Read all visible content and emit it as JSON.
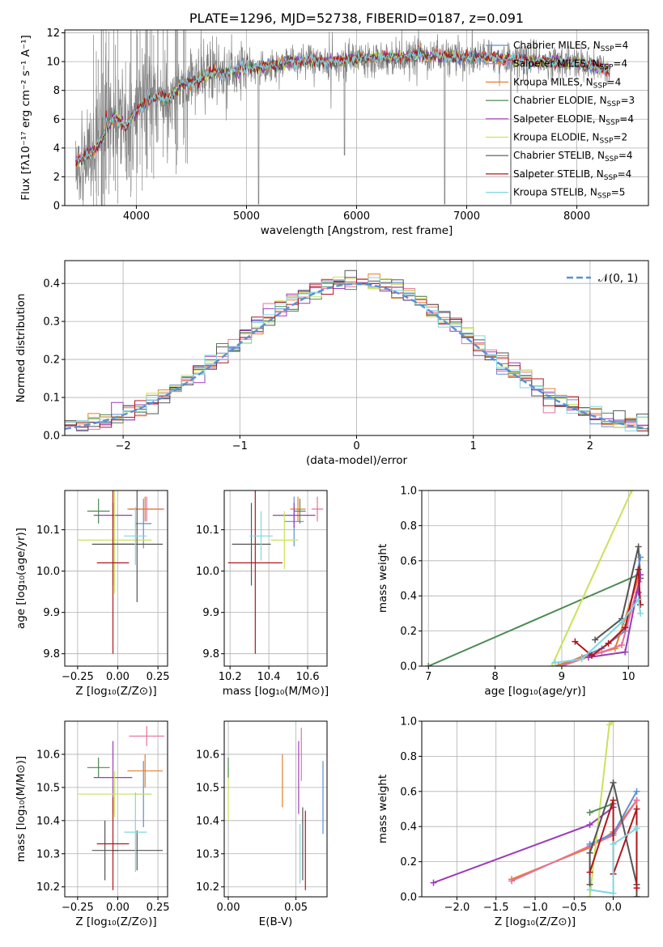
{
  "colors": {
    "chabrier_miles": "#5b8fd6",
    "salpeter_miles": "#e6709c",
    "kroupa_miles": "#e87d2c",
    "chabrier_elodie": "#4c8a52",
    "salpeter_elodie": "#9b3bb8",
    "kroupa_elodie": "#c9e25a",
    "chabrier_stelib": "#555555",
    "salpeter_stelib": "#b0161c",
    "kroupa_stelib": "#7fd6e0",
    "data": "#808080",
    "normal": "#5b8fd6"
  },
  "chart_data": [
    {
      "id": "spectrum",
      "type": "line",
      "title": "PLATE=1296, MJD=52738, FIBERID=0187, z=0.091",
      "xlabel": "wavelength [Angstrom, rest frame]",
      "ylabel": "Flux [fλ10⁻¹⁷ erg cm⁻² s⁻¹ A⁻¹]",
      "xlim": [
        3350,
        8650
      ],
      "ylim": [
        0,
        12.2
      ],
      "xticks": [
        "4000",
        "5000",
        "6000",
        "7000",
        "8000"
      ],
      "yticks": [
        "0",
        "2",
        "4",
        "6",
        "8",
        "10",
        "12"
      ],
      "legend_position": "right",
      "legend": [
        {
          "name": "Chabrier MILES, N",
          "sub": "SSP",
          "suffix": "=4",
          "color": "#5b8fd6"
        },
        {
          "name": "Salpeter MILES, N",
          "sub": "SSP",
          "suffix": "=4",
          "color": "#e6709c"
        },
        {
          "name": "Kroupa MILES, N",
          "sub": "SSP",
          "suffix": "=4",
          "color": "#e87d2c"
        },
        {
          "name": "Chabrier ELODIE, N",
          "sub": "SSP",
          "suffix": "=3",
          "color": "#4c8a52"
        },
        {
          "name": "Salpeter ELODIE, N",
          "sub": "SSP",
          "suffix": "=4",
          "color": "#9b3bb8"
        },
        {
          "name": "Kroupa ELODIE, N",
          "sub": "SSP",
          "suffix": "=2",
          "color": "#c9e25a"
        },
        {
          "name": "Chabrier STELIB, N",
          "sub": "SSP",
          "suffix": "=4",
          "color": "#555555"
        },
        {
          "name": "Salpeter STELIB, N",
          "sub": "SSP",
          "suffix": "=4",
          "color": "#b0161c"
        },
        {
          "name": "Kroupa STELIB, N",
          "sub": "SSP",
          "suffix": "=5",
          "color": "#7fd6e0"
        }
      ],
      "continuum": {
        "x": [
          3450,
          3600,
          3700,
          3800,
          3900,
          4000,
          4100,
          4200,
          4300,
          4400,
          4500,
          4600,
          4700,
          4800,
          4900,
          5000,
          5200,
          5400,
          5600,
          5800,
          6000,
          6200,
          6400,
          6600,
          6800,
          7000,
          7200,
          7400,
          7600,
          7800,
          8000,
          8200,
          8300
        ],
        "y": [
          3.0,
          3.7,
          4.8,
          6.2,
          5.5,
          6.5,
          7.3,
          7.6,
          7.4,
          8.4,
          8.6,
          8.9,
          9.3,
          9.2,
          9.3,
          9.5,
          9.7,
          10.0,
          10.1,
          10.0,
          10.2,
          10.3,
          10.3,
          10.4,
          10.3,
          10.3,
          10.3,
          10.2,
          10.0,
          10.0,
          9.9,
          9.6,
          9.4
        ]
      },
      "emission_lines": [
        {
          "x": 3727,
          "y": 7.5
        },
        {
          "x": 4102,
          "y": 8.7
        },
        {
          "x": 4861,
          "y": 10.8
        },
        {
          "x": 4959,
          "y": 10.7
        },
        {
          "x": 5007,
          "y": 11.2
        },
        {
          "x": 6563,
          "y": 11.5
        },
        {
          "x": 6584,
          "y": 11.2
        },
        {
          "x": 6717,
          "y": 11.0
        },
        {
          "x": 6731,
          "y": 10.9
        }
      ],
      "absorption_dips": [
        {
          "x": 3933,
          "y": 2.0
        },
        {
          "x": 3968,
          "y": 2.5
        },
        {
          "x": 5110,
          "y": 0.1
        },
        {
          "x": 5890,
          "y": 3.5
        },
        {
          "x": 6800,
          "y": 0.1
        },
        {
          "x": 7400,
          "y": 0.1
        }
      ]
    },
    {
      "id": "residuals",
      "type": "area",
      "xlabel": "(data-model)/error",
      "ylabel": "Normed distribution",
      "xlim": [
        -2.5,
        2.5
      ],
      "ylim": [
        0,
        0.46
      ],
      "xticks": [
        "−2",
        "−1",
        "0",
        "1",
        "2"
      ],
      "yticks": [
        "0.0",
        "0.1",
        "0.2",
        "0.3",
        "0.4"
      ],
      "legend_position": "top-right",
      "legend": [
        {
          "name": "𝒩(0, 1)",
          "color": "#5b8fd6"
        }
      ],
      "bin_width": 0.1,
      "bin_start": -2.5,
      "histogram_colors": [
        "#5b8fd6",
        "#e6709c",
        "#e87d2c",
        "#4c8a52",
        "#9b3bb8",
        "#c9e25a",
        "#555555",
        "#b0161c",
        "#7fd6e0"
      ]
    },
    {
      "id": "age_vs_Z",
      "type": "scatter",
      "xlabel": "Z [log₁₀(Z/Z⊙)]",
      "ylabel": "age  [log₁₀(age/yr)]",
      "xlim": [
        -0.33,
        0.31
      ],
      "ylim": [
        9.77,
        10.195
      ],
      "xticks": [
        "−0.25",
        "0.00",
        "0.25"
      ],
      "yticks": [
        "9.8",
        "9.9",
        "10.0",
        "10.1"
      ],
      "points": [
        {
          "x": 0.16,
          "y": 10.115,
          "xerr": 0.05,
          "yerr": 0.06,
          "color": "#5b8fd6"
        },
        {
          "x": 0.18,
          "y": 10.15,
          "xerr": 0.11,
          "yerr": 0.03,
          "color": "#e6709c"
        },
        {
          "x": 0.17,
          "y": 10.15,
          "xerr": 0.11,
          "yerr": 0.03,
          "color": "#e87d2c"
        },
        {
          "x": -0.12,
          "y": 10.145,
          "xerr": 0.07,
          "yerr": 0.03,
          "color": "#4c8a52"
        },
        {
          "x": -0.03,
          "y": 10.135,
          "xerr": 0.12,
          "yerr": 0.03,
          "color": "#9b3bb8"
        },
        {
          "x": -0.02,
          "y": 10.075,
          "xerr": 0.23,
          "yerr": 0.13,
          "color": "#c9e25a"
        },
        {
          "x": 0.12,
          "y": 10.065,
          "xerr": 0.16,
          "yerr": 0.14,
          "color": "#555555"
        },
        {
          "x": -0.03,
          "y": 10.065,
          "xerr": 0.13,
          "yerr": 0.1,
          "color": "#555555"
        },
        {
          "x": -0.03,
          "y": 10.02,
          "xerr": 0.1,
          "yerr": 0.22,
          "color": "#b0161c"
        },
        {
          "x": 0.11,
          "y": 10.085,
          "xerr": 0.07,
          "yerr": 0.07,
          "color": "#7fd6e0"
        }
      ]
    },
    {
      "id": "age_vs_mass",
      "type": "scatter",
      "xlabel": "mass [log₁₀(M/M⊙)]",
      "xlim": [
        10.17,
        10.7
      ],
      "ylim": [
        9.77,
        10.195
      ],
      "xticks": [
        "10.2",
        "10.4",
        "10.6"
      ],
      "yticks": [
        "9.8",
        "9.9",
        "10.0",
        "10.1"
      ],
      "points": [
        {
          "x": 10.53,
          "y": 10.12,
          "xerr": 0.05,
          "yerr": 0.06,
          "color": "#5b8fd6"
        },
        {
          "x": 10.65,
          "y": 10.15,
          "xerr": 0.03,
          "yerr": 0.03,
          "color": "#e6709c"
        },
        {
          "x": 10.55,
          "y": 10.15,
          "xerr": 0.04,
          "yerr": 0.03,
          "color": "#e87d2c"
        },
        {
          "x": 10.56,
          "y": 10.145,
          "xerr": 0.03,
          "yerr": 0.03,
          "color": "#4c8a52"
        },
        {
          "x": 10.53,
          "y": 10.135,
          "xerr": 0.11,
          "yerr": 0.03,
          "color": "#9b3bb8"
        },
        {
          "x": 10.48,
          "y": 10.075,
          "xerr": 0.07,
          "yerr": 0.07,
          "color": "#c9e25a"
        },
        {
          "x": 10.31,
          "y": 10.065,
          "xerr": 0.1,
          "yerr": 0.1,
          "color": "#555555"
        },
        {
          "x": 10.33,
          "y": 10.02,
          "xerr": 0.14,
          "yerr": 0.22,
          "color": "#b0161c"
        },
        {
          "x": 10.36,
          "y": 10.085,
          "xerr": 0.06,
          "yerr": 0.06,
          "color": "#7fd6e0"
        }
      ]
    },
    {
      "id": "massweight_vs_age",
      "type": "line",
      "xlabel": "age  [log₁₀(age/yr)]",
      "ylabel": "mass weight",
      "xlim": [
        6.9,
        10.3
      ],
      "ylim": [
        0,
        1.0
      ],
      "xticks": [
        "7",
        "8",
        "9",
        "10"
      ],
      "yticks": [
        "0.0",
        "0.2",
        "0.4",
        "0.6",
        "0.8",
        "1.0"
      ],
      "series": [
        {
          "color": "#4c8a52",
          "x": [
            7.0,
            10.15
          ],
          "y": [
            0.0,
            0.52
          ]
        },
        {
          "color": "#c9e25a",
          "x": [
            8.85,
            10.05,
            10.15
          ],
          "y": [
            0.0,
            1.0,
            1.02
          ]
        },
        {
          "color": "#555555",
          "x": [
            9.5,
            9.9,
            10.15,
            10.18
          ],
          "y": [
            0.15,
            0.27,
            0.68,
            0.5
          ]
        },
        {
          "color": "#5b8fd6",
          "x": [
            8.95,
            9.6,
            9.95,
            10.18
          ],
          "y": [
            0.0,
            0.1,
            0.2,
            0.62
          ]
        },
        {
          "color": "#e87d2c",
          "x": [
            8.9,
            9.3,
            9.8,
            10.15,
            10.18
          ],
          "y": [
            0.0,
            0.05,
            0.1,
            0.5,
            0.35
          ]
        },
        {
          "color": "#e6709c",
          "x": [
            9.0,
            9.6,
            9.9,
            10.16
          ],
          "y": [
            0.0,
            0.08,
            0.12,
            0.48
          ]
        },
        {
          "color": "#9b3bb8",
          "x": [
            9.4,
            9.95,
            10.18,
            10.15
          ],
          "y": [
            0.05,
            0.08,
            0.52,
            0.42
          ]
        },
        {
          "color": "#b0161c",
          "x": [
            9.2,
            9.45,
            9.7,
            9.95,
            10.15,
            10.18
          ],
          "y": [
            0.14,
            0.06,
            0.13,
            0.22,
            0.55,
            0.35
          ]
        },
        {
          "color": "#7fd6e0",
          "x": [
            8.9,
            9.3,
            9.9,
            10.15,
            10.18
          ],
          "y": [
            0.02,
            0.04,
            0.25,
            0.38,
            0.3
          ]
        }
      ]
    },
    {
      "id": "mass_vs_Z",
      "type": "scatter",
      "xlabel": "Z [log₁₀(Z/Z⊙)]",
      "ylabel": "mass [log₁₀(M/M⊙)]",
      "xlim": [
        -0.33,
        0.31
      ],
      "ylim": [
        10.17,
        10.7
      ],
      "xticks": [
        "−0.25",
        "0.00",
        "0.25"
      ],
      "yticks": [
        "10.2",
        "10.3",
        "10.4",
        "10.5",
        "10.6"
      ],
      "points": [
        {
          "x": 0.16,
          "y": 10.48,
          "xerr": 0.05,
          "yerr": 0.1,
          "color": "#5b8fd6"
        },
        {
          "x": 0.18,
          "y": 10.655,
          "xerr": 0.11,
          "yerr": 0.03,
          "color": "#e6709c"
        },
        {
          "x": 0.17,
          "y": 10.55,
          "xerr": 0.11,
          "yerr": 0.05,
          "color": "#e87d2c"
        },
        {
          "x": -0.12,
          "y": 10.56,
          "xerr": 0.07,
          "yerr": 0.03,
          "color": "#4c8a52"
        },
        {
          "x": -0.03,
          "y": 10.53,
          "xerr": 0.12,
          "yerr": 0.11,
          "color": "#9b3bb8"
        },
        {
          "x": -0.02,
          "y": 10.48,
          "xerr": 0.23,
          "yerr": 0.07,
          "color": "#c9e25a"
        },
        {
          "x": 0.12,
          "y": 10.31,
          "xerr": 0.16,
          "yerr": 0.06,
          "color": "#555555"
        },
        {
          "x": -0.08,
          "y": 10.31,
          "xerr": 0.08,
          "yerr": 0.09,
          "color": "#555555"
        },
        {
          "x": -0.03,
          "y": 10.33,
          "xerr": 0.1,
          "yerr": 0.14,
          "color": "#b0161c"
        },
        {
          "x": 0.11,
          "y": 10.365,
          "xerr": 0.07,
          "yerr": 0.12,
          "color": "#7fd6e0"
        }
      ]
    },
    {
      "id": "mass_vs_ebv",
      "type": "scatter",
      "xlabel": "E(B-V)",
      "xlim": [
        -0.003,
        0.073
      ],
      "ylim": [
        10.17,
        10.7
      ],
      "xticks": [
        "0.00",
        "0.05"
      ],
      "yticks": [
        "10.2",
        "10.3",
        "10.4",
        "10.5",
        "10.6"
      ],
      "points": [
        {
          "x": 0.0,
          "y": 10.48,
          "xerr": 0,
          "yerr": 0.08,
          "color": "#c9e25a"
        },
        {
          "x": 0.0,
          "y": 10.56,
          "xerr": 0,
          "yerr": 0.03,
          "color": "#4c8a52"
        },
        {
          "x": 0.04,
          "y": 10.52,
          "xerr": 0,
          "yerr": 0.08,
          "color": "#e87d2c"
        },
        {
          "x": 0.052,
          "y": 10.53,
          "xerr": 0,
          "yerr": 0.11,
          "color": "#9b3bb8"
        },
        {
          "x": 0.054,
          "y": 10.6,
          "xerr": 0,
          "yerr": 0.08,
          "color": "#e6709c"
        },
        {
          "x": 0.053,
          "y": 10.3,
          "xerr": 0,
          "yerr": 0.09,
          "color": "#7fd6e0"
        },
        {
          "x": 0.055,
          "y": 10.33,
          "xerr": 0,
          "yerr": 0.11,
          "color": "#555555"
        },
        {
          "x": 0.057,
          "y": 10.31,
          "xerr": 0,
          "yerr": 0.12,
          "color": "#b0161c"
        },
        {
          "x": 0.07,
          "y": 10.47,
          "xerr": 0,
          "yerr": 0.11,
          "color": "#5b8fd6"
        }
      ]
    },
    {
      "id": "massweight_vs_Z",
      "type": "line",
      "xlabel": "Z [log₁₀(Z/Z⊙)]",
      "ylabel": "mass weight",
      "xlim": [
        -2.45,
        0.45
      ],
      "ylim": [
        0,
        1.0
      ],
      "xticks": [
        "−2.0",
        "−1.5",
        "−1.0",
        "−0.5",
        "0.0"
      ],
      "yticks": [
        "0.0",
        "0.2",
        "0.4",
        "0.6",
        "0.8",
        "1.0"
      ],
      "series": [
        {
          "color": "#9b3bb8",
          "x": [
            -2.3,
            -0.3,
            0.0
          ],
          "y": [
            0.08,
            0.41,
            0.51
          ]
        },
        {
          "color": "#e87d2c",
          "x": [
            -1.3,
            -0.3,
            0.0,
            0.3,
            0.3
          ],
          "y": [
            0.1,
            0.28,
            0.37,
            0.55,
            0.0
          ]
        },
        {
          "color": "#e6709c",
          "x": [
            -1.3,
            -0.3,
            0.0,
            0.3
          ],
          "y": [
            0.09,
            0.29,
            0.35,
            0.55
          ]
        },
        {
          "color": "#5b8fd6",
          "x": [
            -0.3,
            0.0,
            0.3
          ],
          "y": [
            0.3,
            0.36,
            0.6
          ]
        },
        {
          "color": "#c9e25a",
          "x": [
            -0.3,
            -0.05,
            0.0
          ],
          "y": [
            0.0,
            0.98,
            1.0
          ]
        },
        {
          "color": "#4c8a52",
          "x": [
            -0.3,
            0.0
          ],
          "y": [
            0.48,
            0.53
          ]
        },
        {
          "color": "#555555",
          "x": [
            -0.3,
            -0.3,
            0.0,
            0.3,
            0.3
          ],
          "y": [
            0.07,
            0.25,
            0.65,
            0.07,
            0.0
          ]
        },
        {
          "color": "#b0161c",
          "x": [
            -0.3,
            0.0,
            0.0,
            0.3,
            0.3
          ],
          "y": [
            0.14,
            0.55,
            0.13,
            0.5,
            0.05
          ]
        },
        {
          "color": "#7fd6e0",
          "x": [
            -0.3,
            0.0,
            0.0,
            0.3
          ],
          "y": [
            0.04,
            0.02,
            0.3,
            0.39
          ]
        }
      ]
    }
  ]
}
